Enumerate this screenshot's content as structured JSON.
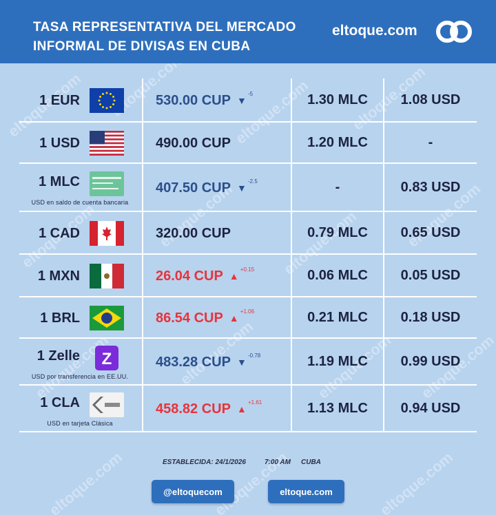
{
  "header": {
    "title_line1": "TASA REPRESENTATIVA DEL MERCADO",
    "title_line2": "INFORMAL DE DIVISAS EN CUBA",
    "brand": "eltoque.com"
  },
  "watermark": "eltoque.com",
  "rows": [
    {
      "code": "1 EUR",
      "sub": "",
      "flag": "eu-flag-icon",
      "rate": "530.00 CUP",
      "trend": "down",
      "change": "-5",
      "mlc": "1.30 MLC",
      "usd": "1.08 USD"
    },
    {
      "code": "1 USD",
      "sub": "",
      "flag": "us-flag-icon",
      "rate": "490.00 CUP",
      "trend": "flat",
      "change": "",
      "mlc": "1.20 MLC",
      "usd": "-"
    },
    {
      "code": "1 MLC",
      "sub": "USD en saldo de cuenta bancaria",
      "flag": "mlc-card-icon",
      "rate": "407.50 CUP",
      "trend": "down",
      "change": "-2.5",
      "mlc": "-",
      "usd": "0.83 USD"
    },
    {
      "code": "1 CAD",
      "sub": "",
      "flag": "canada-flag-icon",
      "rate": "320.00 CUP",
      "trend": "flat",
      "change": "",
      "mlc": "0.79 MLC",
      "usd": "0.65 USD"
    },
    {
      "code": "1 MXN",
      "sub": "",
      "flag": "mexico-flag-icon",
      "rate": "26.04 CUP",
      "trend": "up",
      "change": "+0.15",
      "mlc": "0.06 MLC",
      "usd": "0.05 USD"
    },
    {
      "code": "1 BRL",
      "sub": "",
      "flag": "brazil-flag-icon",
      "rate": "86.54 CUP",
      "trend": "up",
      "change": "+1.06",
      "mlc": "0.21 MLC",
      "usd": "0.18 USD"
    },
    {
      "code": "1 Zelle",
      "sub": "USD por transferencia en EE.UU.",
      "flag": "zelle-logo-icon",
      "rate": "483.28 CUP",
      "trend": "down",
      "change": "-0.78",
      "mlc": "1.19 MLC",
      "usd": "0.99 USD"
    },
    {
      "code": "1 CLA",
      "sub": "USD en tarjeta Clásica",
      "flag": "clasica-card-icon",
      "rate": "458.82 CUP",
      "trend": "up",
      "change": "+1.61",
      "mlc": "1.13 MLC",
      "usd": "0.94 USD"
    }
  ],
  "footer": {
    "established_label": "ESTABLECIDA: 24/1/2026",
    "time": "7:00 AM",
    "place": "CUBA",
    "button_social": "@eltoquecom",
    "button_web": "eltoque.com"
  },
  "colors": {
    "header_bg": "#2e6fbd",
    "page_bg": "#b8d3ee",
    "up": "#e8333b",
    "down": "#2b4f8c",
    "text": "#1c2340"
  }
}
